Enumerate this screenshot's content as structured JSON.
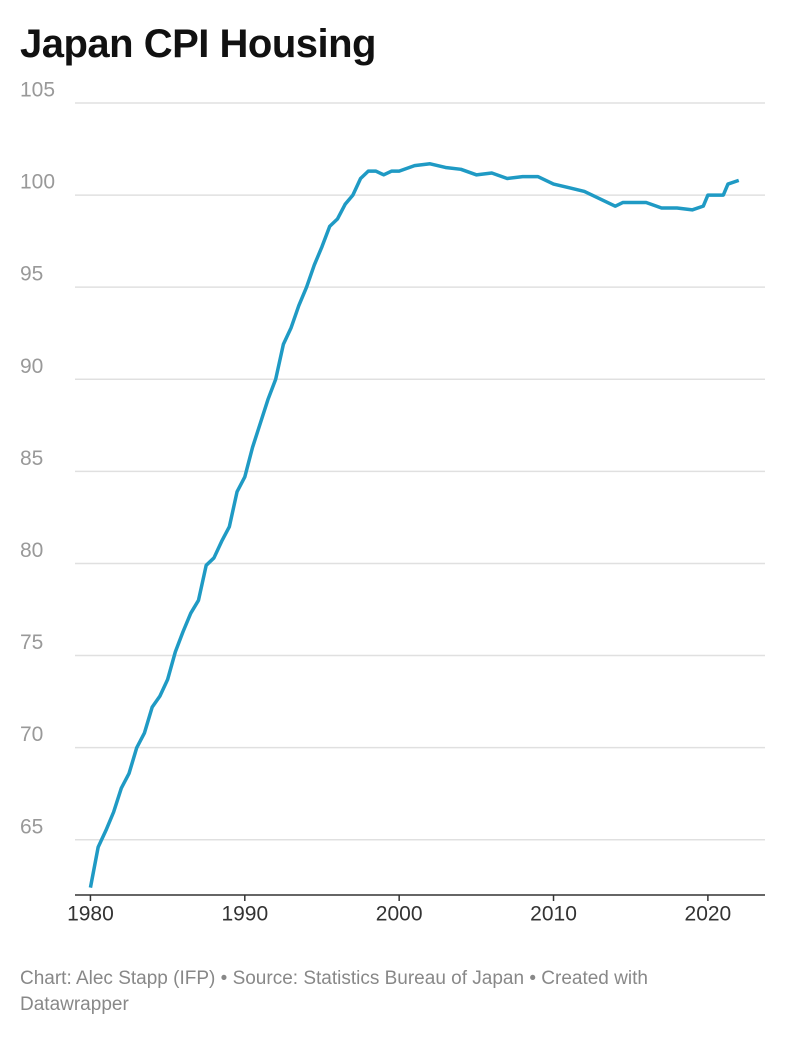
{
  "chart_data": {
    "type": "line",
    "title": "Japan CPI Housing",
    "footer": "Chart: Alec Stapp (IFP) • Source: Statistics Bureau of Japan • Created with Datawrapper",
    "x": [
      1980,
      1980.5,
      1981,
      1981.5,
      1982,
      1982.5,
      1983,
      1983.5,
      1984,
      1984.5,
      1985,
      1985.5,
      1986,
      1986.5,
      1987,
      1987.5,
      1988,
      1988.5,
      1989,
      1989.5,
      1990,
      1990.5,
      1991,
      1991.5,
      1992,
      1992.5,
      1993,
      1993.5,
      1994,
      1994.5,
      1995,
      1995.5,
      1996,
      1996.5,
      1997,
      1997.5,
      1998,
      1998.5,
      1999,
      1999.5,
      2000,
      2001,
      2002,
      2003,
      2004,
      2005,
      2006,
      2007,
      2008,
      2009,
      2010,
      2011,
      2012,
      2013,
      2014,
      2014.5,
      2016,
      2017,
      2018,
      2019,
      2019.7,
      2020,
      2021,
      2021.3,
      2022
    ],
    "series": [
      {
        "name": "CPI Housing",
        "color": "#1f9ac4",
        "values": [
          62.4,
          64.6,
          65.5,
          66.5,
          67.8,
          68.6,
          70.0,
          70.8,
          72.2,
          72.8,
          73.7,
          75.2,
          76.3,
          77.3,
          78.0,
          79.9,
          80.3,
          81.2,
          82.0,
          83.9,
          84.7,
          86.3,
          87.6,
          88.9,
          90.0,
          91.9,
          92.8,
          94.0,
          95.0,
          96.2,
          97.2,
          98.3,
          98.7,
          99.5,
          100.0,
          100.9,
          101.3,
          101.3,
          101.1,
          101.3,
          101.3,
          101.6,
          101.7,
          101.5,
          101.4,
          101.1,
          101.2,
          100.9,
          101.0,
          101.0,
          100.6,
          100.4,
          100.2,
          99.8,
          99.4,
          99.6,
          99.6,
          99.3,
          99.3,
          99.2,
          99.4,
          100.0,
          100.0,
          100.6,
          100.8
        ]
      }
    ],
    "xlim": [
      1979,
      2023.7
    ],
    "ylim": [
      62,
      105
    ],
    "xticks": [
      1980,
      1990,
      2000,
      2010,
      2020
    ],
    "yticks": [
      65,
      70,
      75,
      80,
      85,
      90,
      95,
      100,
      105
    ],
    "grid": true
  }
}
